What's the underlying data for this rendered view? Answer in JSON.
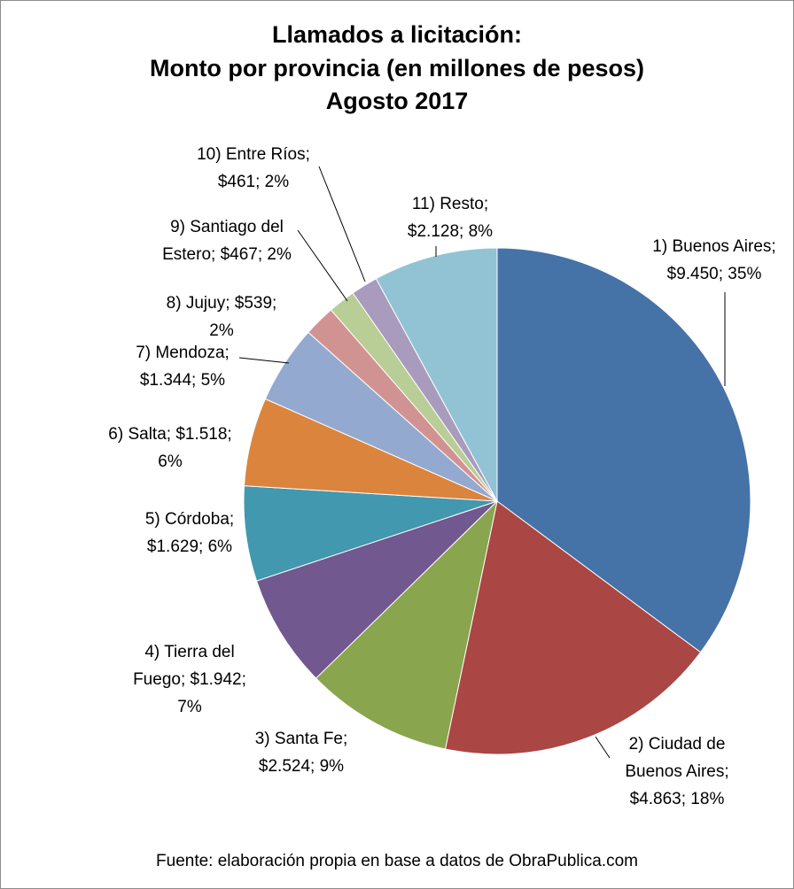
{
  "chart_data": {
    "type": "pie",
    "title": [
      "Llamados a licitación:",
      "Monto por provincia (en millones de pesos)",
      "Agosto 2017"
    ],
    "slices": [
      {
        "name": "1) Buenos Aires",
        "value": 9450,
        "percent": 35,
        "color": "#4572A7",
        "label": [
          "1) Buenos Aires;",
          "$9.450; 35%"
        ]
      },
      {
        "name": "2) Ciudad de Buenos Aires",
        "value": 4863,
        "percent": 18,
        "color": "#AA4643",
        "label": [
          "2) Ciudad de",
          "Buenos Aires;",
          "$4.863; 18%"
        ]
      },
      {
        "name": "3) Santa Fe",
        "value": 2524,
        "percent": 9,
        "color": "#89A54E",
        "label": [
          "3) Santa Fe;",
          "$2.524; 9%"
        ]
      },
      {
        "name": "4) Tierra del Fuego",
        "value": 1942,
        "percent": 7,
        "color": "#71588F",
        "label": [
          "4) Tierra del",
          "Fuego; $1.942;",
          "7%"
        ]
      },
      {
        "name": "5) Córdoba",
        "value": 1629,
        "percent": 6,
        "color": "#4198AF",
        "label": [
          "5) Córdoba;",
          "$1.629; 6%"
        ]
      },
      {
        "name": "6) Salta",
        "value": 1518,
        "percent": 6,
        "color": "#DB843D",
        "label": [
          "6) Salta; $1.518;",
          "6%"
        ]
      },
      {
        "name": "7) Mendoza",
        "value": 1344,
        "percent": 5,
        "color": "#93A9CF",
        "label": [
          "7) Mendoza;",
          "$1.344; 5%"
        ]
      },
      {
        "name": "8) Jujuy",
        "value": 539,
        "percent": 2,
        "color": "#D19392",
        "label": [
          "8) Jujuy; $539;",
          "2%"
        ]
      },
      {
        "name": "9) Santiago del Estero",
        "value": 467,
        "percent": 2,
        "color": "#B9CD96",
        "label": [
          "9) Santiago del",
          "Estero; $467; 2%"
        ]
      },
      {
        "name": "10) Entre Ríos",
        "value": 461,
        "percent": 2,
        "color": "#A99BBD",
        "label": [
          "10) Entre Ríos;",
          "$461; 2%"
        ]
      },
      {
        "name": "11) Resto",
        "value": 2128,
        "percent": 8,
        "color": "#92C3D4",
        "label": [
          "11) Resto;",
          "$2.128; 8%"
        ]
      }
    ],
    "legend": "none",
    "data_labels": "outside",
    "source": "Fuente: elaboración propia en base a datos de ObraPublica.com"
  }
}
